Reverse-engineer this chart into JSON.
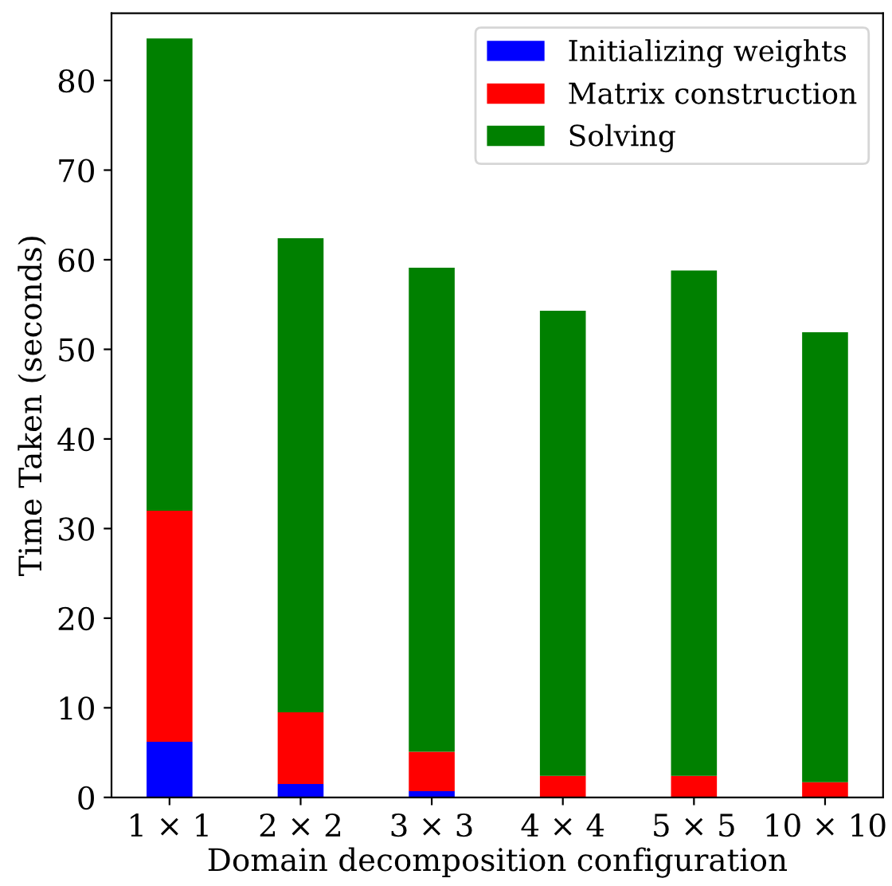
{
  "chart_data": {
    "type": "bar",
    "stacked": true,
    "xlabel": "Domain decomposition configuration",
    "ylabel": "Time Taken (seconds)",
    "categories": [
      "1 × 1",
      "2 × 2",
      "3 × 3",
      "4 × 4",
      "5 × 5",
      "10 × 10"
    ],
    "series": [
      {
        "name": "Initializing weights",
        "color": "#0000ff",
        "values": [
          6.2,
          1.5,
          0.7,
          null,
          null,
          null
        ]
      },
      {
        "name": "Matrix construction",
        "color": "#ff0000",
        "values": [
          25.8,
          8.0,
          4.4,
          2.4,
          2.4,
          1.7
        ]
      },
      {
        "name": "Solving",
        "color": "#008000",
        "values": [
          52.7,
          52.9,
          54.0,
          51.9,
          56.4,
          50.2
        ]
      }
    ],
    "ylim": [
      0,
      87.5
    ],
    "yticks": [
      0,
      10,
      20,
      30,
      40,
      50,
      60,
      70,
      80
    ],
    "grid": false,
    "legend": "top right"
  }
}
